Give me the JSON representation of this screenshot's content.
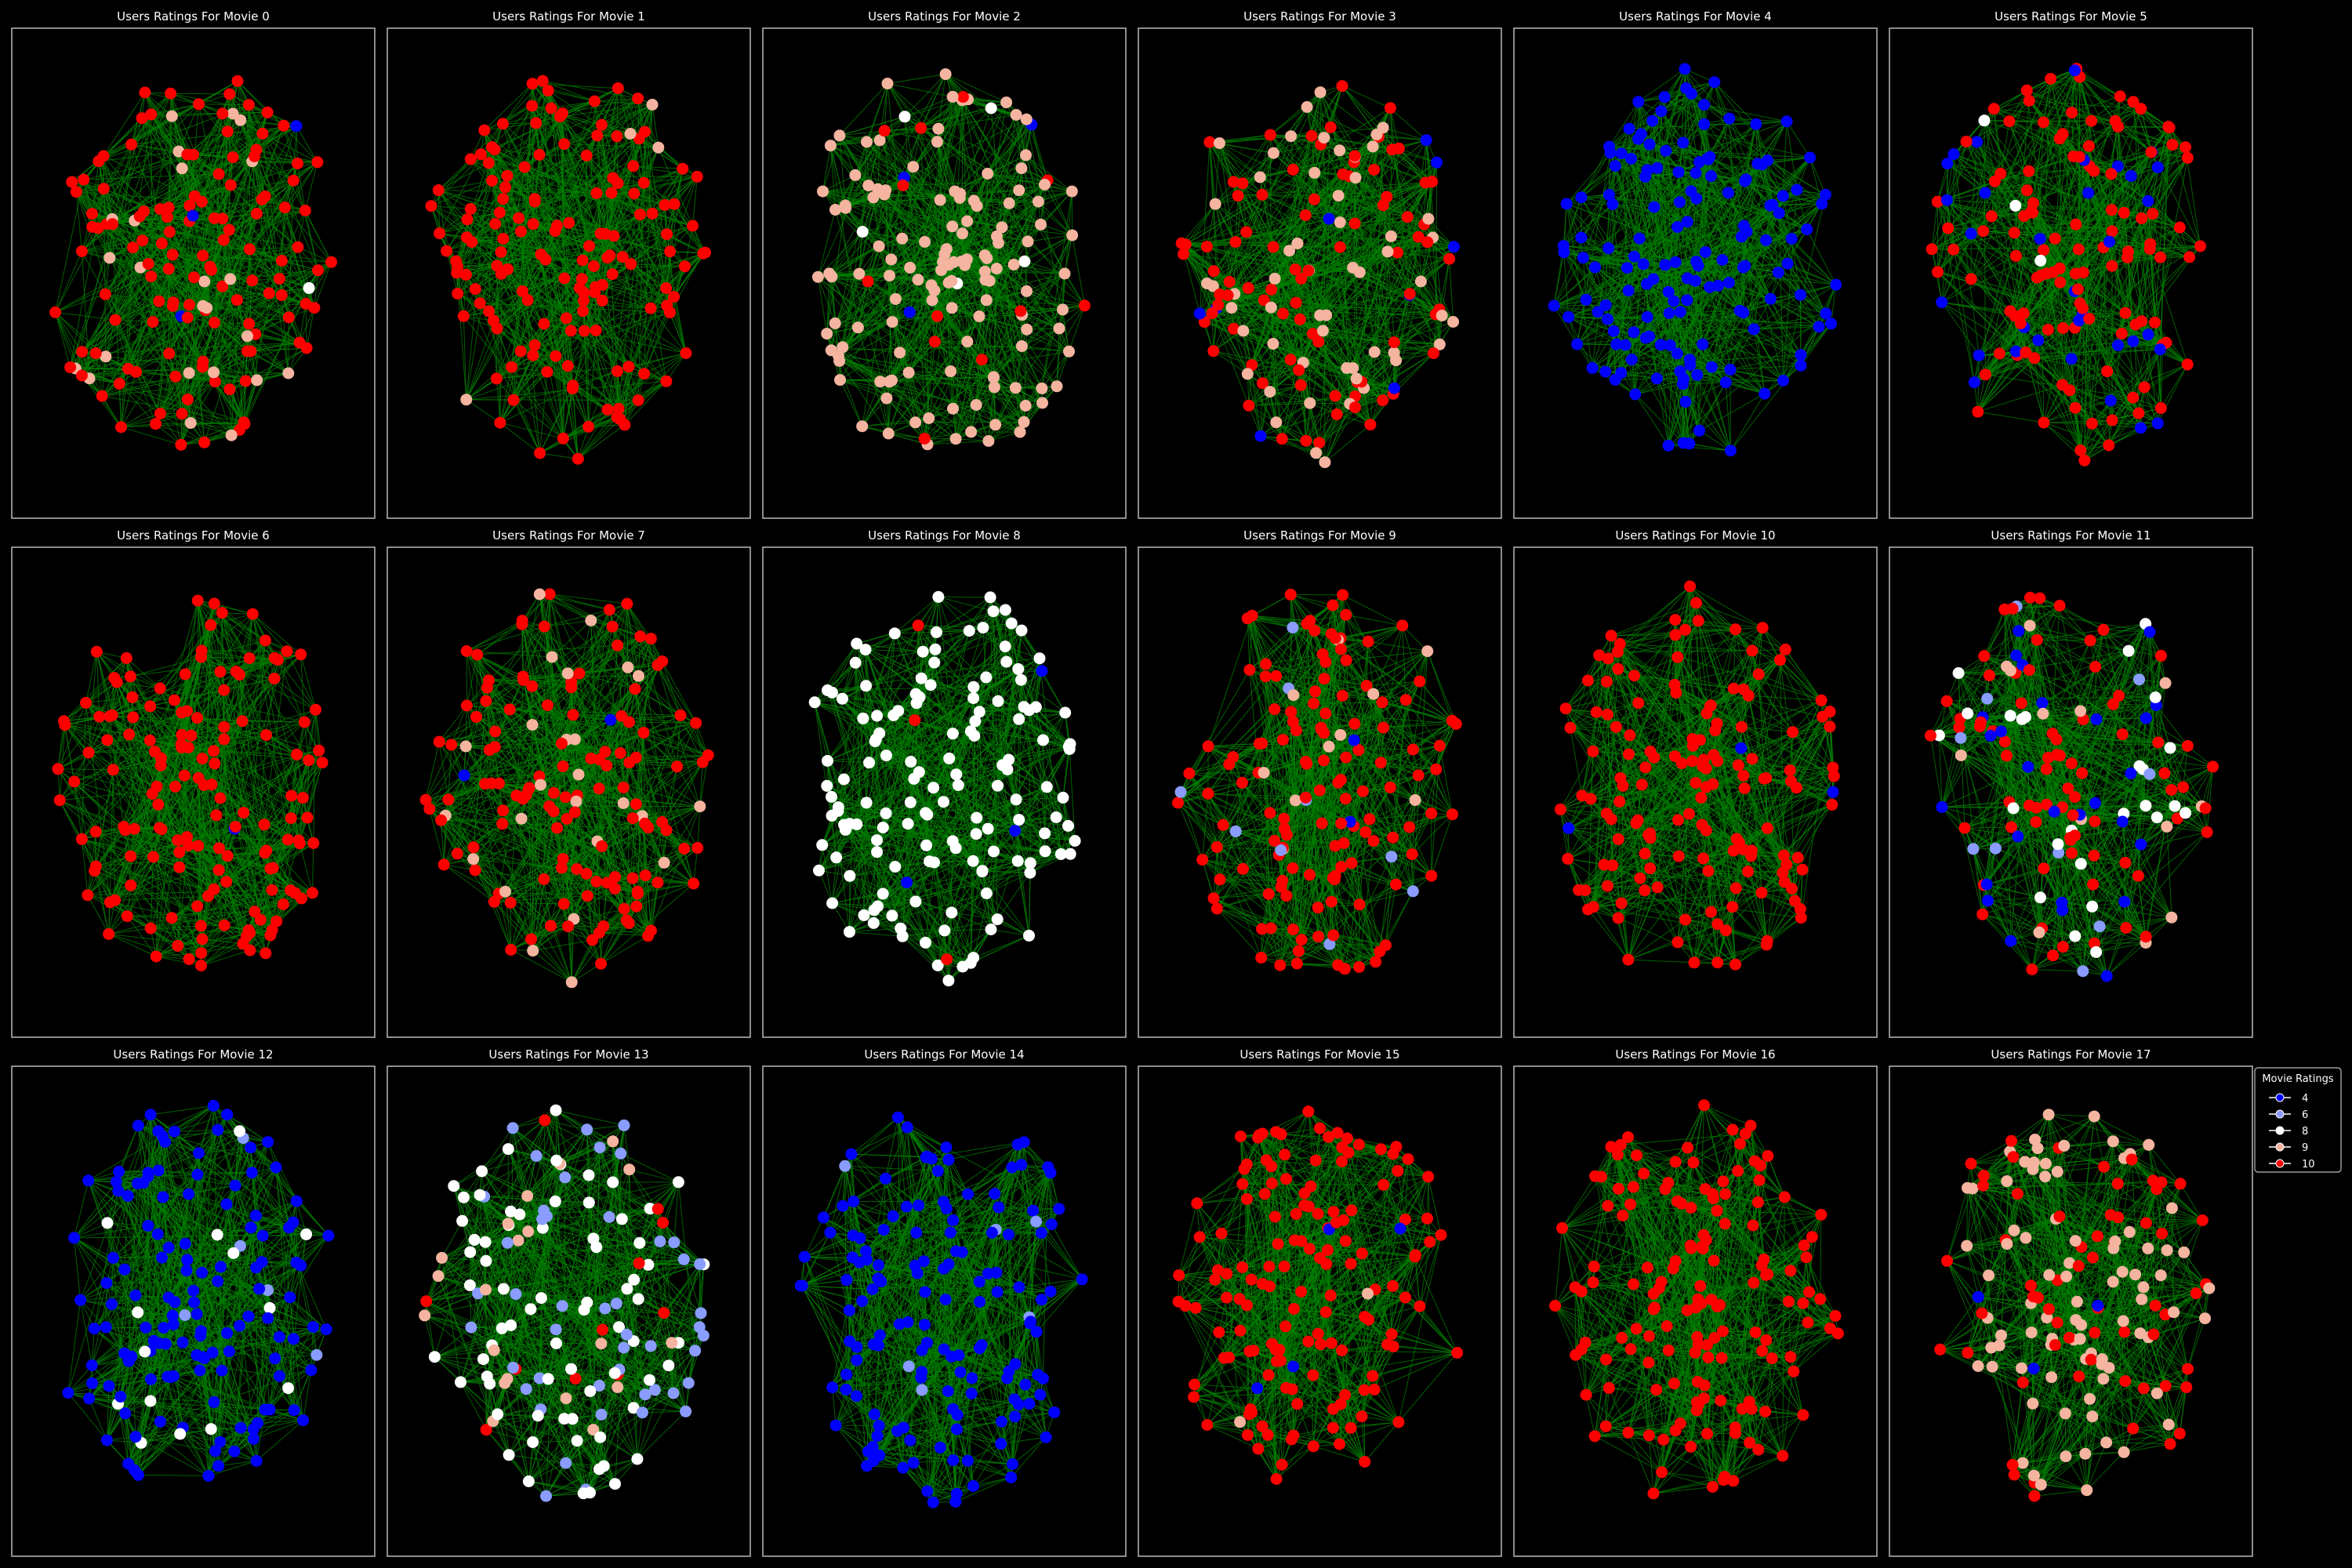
{
  "chart_data": {
    "type": "scatter",
    "subtype": "network-graph-grid",
    "rows": 3,
    "cols": 6,
    "colors": {
      "background": "#000000",
      "frame": "#bbbbbb",
      "edge": "#008000",
      "text": "#ffffff"
    },
    "legend": {
      "title": "Movie Ratings",
      "placement": "right",
      "entries": [
        {
          "label": "4",
          "color": "#0000ff"
        },
        {
          "label": "6",
          "color": "#8a9cff"
        },
        {
          "label": "8",
          "color": "#ffffff"
        },
        {
          "label": "9",
          "color": "#f4b4a0"
        },
        {
          "label": "10",
          "color": "#ff0000"
        }
      ]
    },
    "panels": [
      {
        "title": "Users Ratings For Movie 0",
        "mix": {
          "10": 0.78,
          "9": 0.18,
          "8": 0.02,
          "6": 0.01,
          "4": 0.01
        }
      },
      {
        "title": "Users Ratings For Movie 1",
        "mix": {
          "10": 0.95,
          "9": 0.03,
          "8": 0.01,
          "4": 0.01
        }
      },
      {
        "title": "Users Ratings For Movie 2",
        "mix": {
          "9": 0.88,
          "10": 0.07,
          "8": 0.03,
          "4": 0.02
        }
      },
      {
        "title": "Users Ratings For Movie 3",
        "mix": {
          "10": 0.55,
          "9": 0.38,
          "6": 0.03,
          "4": 0.04
        }
      },
      {
        "title": "Users Ratings For Movie 4",
        "mix": {
          "4": 1.0
        }
      },
      {
        "title": "Users Ratings For Movie 5",
        "mix": {
          "10": 0.78,
          "4": 0.19,
          "8": 0.03
        }
      },
      {
        "title": "Users Ratings For Movie 6",
        "mix": {
          "10": 0.98,
          "4": 0.02
        }
      },
      {
        "title": "Users Ratings For Movie 7",
        "mix": {
          "10": 0.82,
          "9": 0.16,
          "4": 0.02
        }
      },
      {
        "title": "Users Ratings For Movie 8",
        "mix": {
          "8": 0.95,
          "10": 0.03,
          "4": 0.02
        }
      },
      {
        "title": "Users Ratings For Movie 9",
        "mix": {
          "10": 0.9,
          "9": 0.05,
          "6": 0.04,
          "4": 0.01
        }
      },
      {
        "title": "Users Ratings For Movie 10",
        "mix": {
          "10": 0.97,
          "6": 0.01,
          "4": 0.02
        }
      },
      {
        "title": "Users Ratings For Movie 11",
        "mix": {
          "10": 0.5,
          "8": 0.2,
          "4": 0.16,
          "9": 0.08,
          "6": 0.06
        }
      },
      {
        "title": "Users Ratings For Movie 12",
        "mix": {
          "4": 0.86,
          "8": 0.12,
          "6": 0.02
        }
      },
      {
        "title": "Users Ratings For Movie 13",
        "mix": {
          "8": 0.42,
          "6": 0.38,
          "9": 0.12,
          "10": 0.08
        }
      },
      {
        "title": "Users Ratings For Movie 14",
        "mix": {
          "4": 0.97,
          "6": 0.03
        }
      },
      {
        "title": "Users Ratings For Movie 15",
        "mix": {
          "10": 0.97,
          "4": 0.02,
          "9": 0.01
        }
      },
      {
        "title": "Users Ratings For Movie 16",
        "mix": {
          "10": 0.99,
          "4": 0.01
        }
      },
      {
        "title": "Users Ratings For Movie 17",
        "mix": {
          "9": 0.55,
          "10": 0.42,
          "4": 0.02,
          "6": 0.01
        }
      }
    ]
  }
}
